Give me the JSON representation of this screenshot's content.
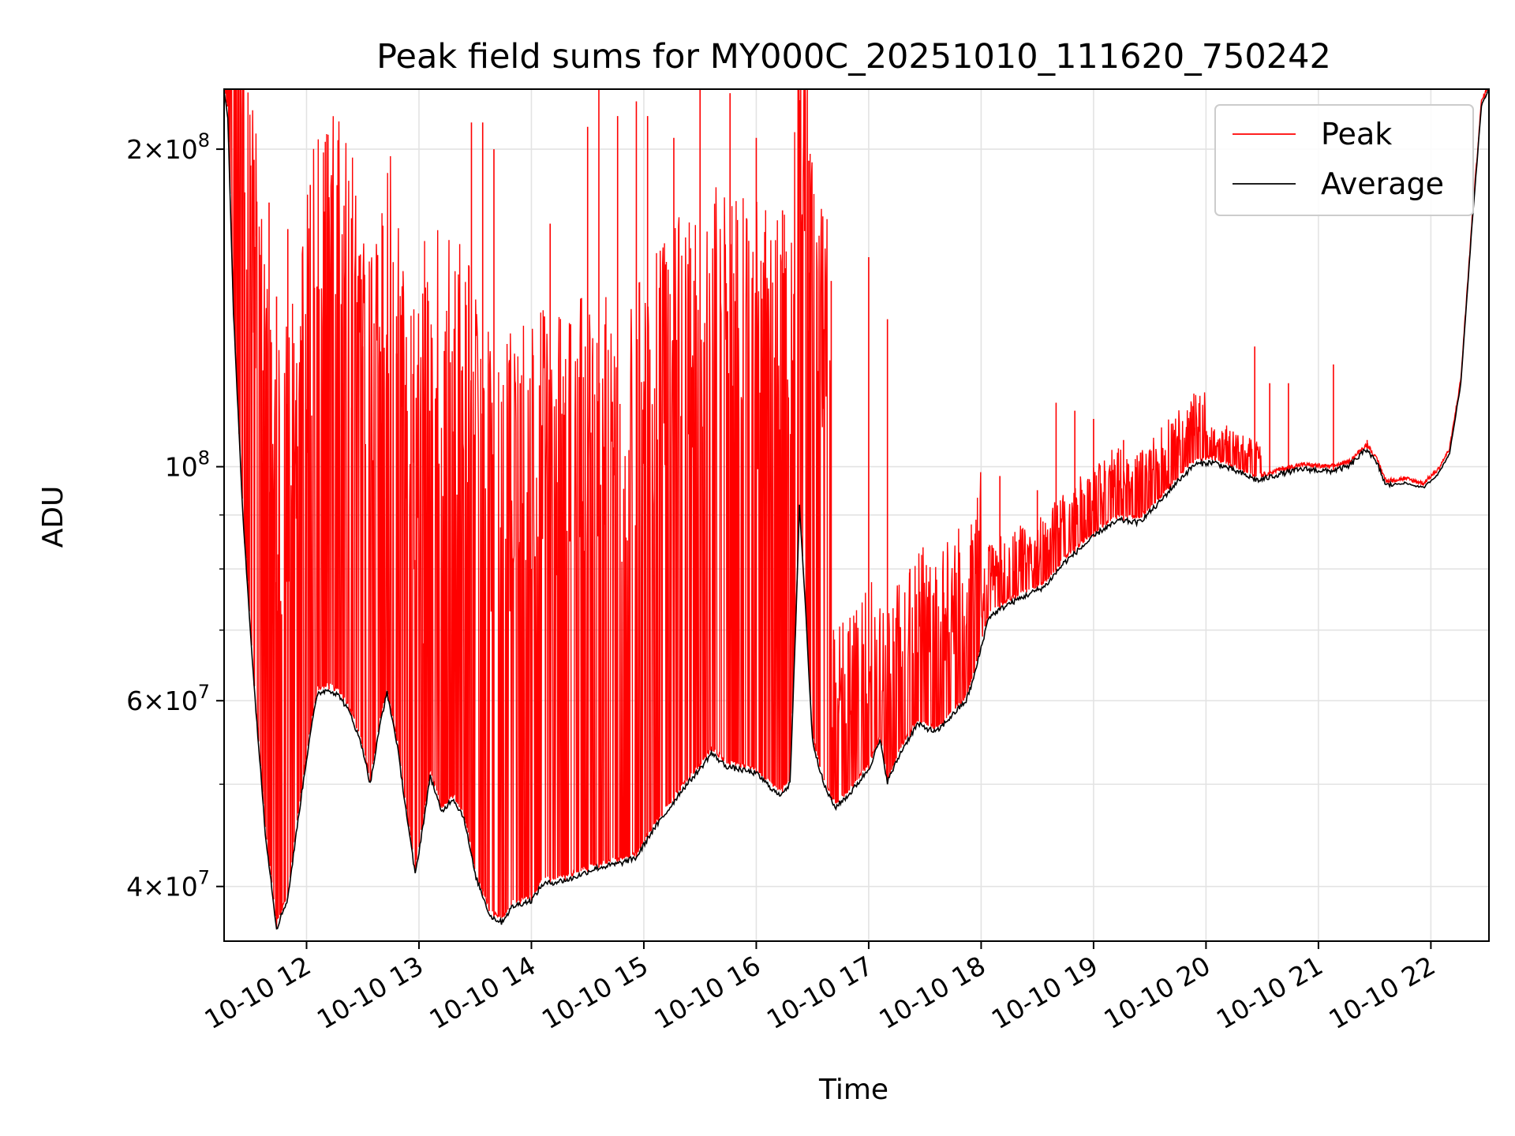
{
  "chart_data": {
    "type": "line",
    "title": "Peak field sums for MY000C_20251010_111620_750242",
    "xlabel": "Time",
    "ylabel": "ADU",
    "y_scale": "log",
    "ylim": [
      35500000,
      228000000
    ],
    "xlim": [
      "2025-10-10 11:16",
      "2025-10-10 22:31"
    ],
    "grid": true,
    "legend_position": "top-right",
    "x_ticks": [
      {
        "value": "2025-10-10 12:00",
        "label": "10-10 12"
      },
      {
        "value": "2025-10-10 13:00",
        "label": "10-10 13"
      },
      {
        "value": "2025-10-10 14:00",
        "label": "10-10 14"
      },
      {
        "value": "2025-10-10 15:00",
        "label": "10-10 15"
      },
      {
        "value": "2025-10-10 16:00",
        "label": "10-10 16"
      },
      {
        "value": "2025-10-10 17:00",
        "label": "10-10 17"
      },
      {
        "value": "2025-10-10 18:00",
        "label": "10-10 18"
      },
      {
        "value": "2025-10-10 19:00",
        "label": "10-10 19"
      },
      {
        "value": "2025-10-10 20:00",
        "label": "10-10 20"
      },
      {
        "value": "2025-10-10 21:00",
        "label": "10-10 21"
      },
      {
        "value": "2025-10-10 22:00",
        "label": "10-10 22"
      }
    ],
    "y_ticks": [
      {
        "value": 40000000,
        "base": "4",
        "exp": "7"
      },
      {
        "value": 60000000,
        "base": "6",
        "exp": "7"
      },
      {
        "value": 100000000,
        "base": "",
        "exp": "8"
      },
      {
        "value": 200000000,
        "base": "2",
        "exp": "8"
      }
    ],
    "y_minor_grid": [
      50000000,
      70000000,
      80000000,
      90000000
    ],
    "series": [
      {
        "name": "Average",
        "color": "#000000",
        "points": [
          [
            "2025-10-10 11:16",
            228000000
          ],
          [
            "2025-10-10 11:18",
            215000000
          ],
          [
            "2025-10-10 11:21",
            140000000
          ],
          [
            "2025-10-10 11:26",
            90000000
          ],
          [
            "2025-10-10 11:32",
            62000000
          ],
          [
            "2025-10-10 11:38",
            45000000
          ],
          [
            "2025-10-10 11:44",
            36500000
          ],
          [
            "2025-10-10 11:50",
            39000000
          ],
          [
            "2025-10-10 11:56",
            47000000
          ],
          [
            "2025-10-10 12:02",
            56000000
          ],
          [
            "2025-10-10 12:06",
            61000000
          ],
          [
            "2025-10-10 12:12",
            61500000
          ],
          [
            "2025-10-10 12:18",
            60500000
          ],
          [
            "2025-10-10 12:24",
            58000000
          ],
          [
            "2025-10-10 12:30",
            54000000
          ],
          [
            "2025-10-10 12:34",
            50000000
          ],
          [
            "2025-10-10 12:40",
            58000000
          ],
          [
            "2025-10-10 12:43",
            61000000
          ],
          [
            "2025-10-10 12:48",
            55000000
          ],
          [
            "2025-10-10 12:54",
            46000000
          ],
          [
            "2025-10-10 12:58",
            41000000
          ],
          [
            "2025-10-10 13:04",
            48000000
          ],
          [
            "2025-10-10 13:06",
            51000000
          ],
          [
            "2025-10-10 13:12",
            47000000
          ],
          [
            "2025-10-10 13:18",
            48500000
          ],
          [
            "2025-10-10 13:24",
            46500000
          ],
          [
            "2025-10-10 13:30",
            41000000
          ],
          [
            "2025-10-10 13:38",
            37500000
          ],
          [
            "2025-10-10 13:44",
            37000000
          ],
          [
            "2025-10-10 13:50",
            38300000
          ],
          [
            "2025-10-10 14:00",
            38800000
          ],
          [
            "2025-10-10 14:06",
            40200000
          ],
          [
            "2025-10-10 14:20",
            40600000
          ],
          [
            "2025-10-10 14:34",
            41600000
          ],
          [
            "2025-10-10 14:48",
            42100000
          ],
          [
            "2025-10-10 14:56",
            42600000
          ],
          [
            "2025-10-10 15:04",
            45000000
          ],
          [
            "2025-10-10 15:12",
            47000000
          ],
          [
            "2025-10-10 15:20",
            49300000
          ],
          [
            "2025-10-10 15:30",
            51700000
          ],
          [
            "2025-10-10 15:36",
            53500000
          ],
          [
            "2025-10-10 15:44",
            52000000
          ],
          [
            "2025-10-10 16:00",
            51200000
          ],
          [
            "2025-10-10 16:12",
            48800000
          ],
          [
            "2025-10-10 16:18",
            50000000
          ],
          [
            "2025-10-10 16:21",
            70000000
          ],
          [
            "2025-10-10 16:23",
            92000000
          ],
          [
            "2025-10-10 16:26",
            75000000
          ],
          [
            "2025-10-10 16:30",
            55000000
          ],
          [
            "2025-10-10 16:36",
            50000000
          ],
          [
            "2025-10-10 16:42",
            47500000
          ],
          [
            "2025-10-10 16:50",
            49000000
          ],
          [
            "2025-10-10 17:00",
            51700000
          ],
          [
            "2025-10-10 17:06",
            55000000
          ],
          [
            "2025-10-10 17:10",
            50300000
          ],
          [
            "2025-10-10 17:18",
            54000000
          ],
          [
            "2025-10-10 17:26",
            57000000
          ],
          [
            "2025-10-10 17:36",
            56000000
          ],
          [
            "2025-10-10 17:46",
            58500000
          ],
          [
            "2025-10-10 17:52",
            60000000
          ],
          [
            "2025-10-10 17:56",
            63000000
          ],
          [
            "2025-10-10 18:04",
            72000000
          ],
          [
            "2025-10-10 18:14",
            74000000
          ],
          [
            "2025-10-10 18:24",
            75500000
          ],
          [
            "2025-10-10 18:34",
            77000000
          ],
          [
            "2025-10-10 18:44",
            81000000
          ],
          [
            "2025-10-10 18:54",
            84000000
          ],
          [
            "2025-10-10 19:04",
            87000000
          ],
          [
            "2025-10-10 19:14",
            89000000
          ],
          [
            "2025-10-10 19:24",
            88500000
          ],
          [
            "2025-10-10 19:34",
            92000000
          ],
          [
            "2025-10-10 19:44",
            96500000
          ],
          [
            "2025-10-10 19:54",
            100500000
          ],
          [
            "2025-10-10 20:04",
            101000000
          ],
          [
            "2025-10-10 20:16",
            99000000
          ],
          [
            "2025-10-10 20:28",
            97000000
          ],
          [
            "2025-10-10 20:40",
            98500000
          ],
          [
            "2025-10-10 20:52",
            99500000
          ],
          [
            "2025-10-10 21:06",
            99000000
          ],
          [
            "2025-10-10 21:16",
            100000000
          ],
          [
            "2025-10-10 21:26",
            104000000
          ],
          [
            "2025-10-10 21:32",
            100000000
          ],
          [
            "2025-10-10 21:36",
            96000000
          ],
          [
            "2025-10-10 21:46",
            96500000
          ],
          [
            "2025-10-10 21:56",
            95500000
          ],
          [
            "2025-10-10 22:04",
            98500000
          ],
          [
            "2025-10-10 22:10",
            103000000
          ],
          [
            "2025-10-10 22:16",
            120000000
          ],
          [
            "2025-10-10 22:22",
            170000000
          ],
          [
            "2025-10-10 22:27",
            220000000
          ],
          [
            "2025-10-10 22:31",
            228000000
          ]
        ]
      },
      {
        "name": "Peak",
        "color": "#ff0000",
        "note": "Peak follows the Average envelope with frequent narrow upward spikes",
        "spikes": [
          [
            "2025-10-10 11:24",
            150000000
          ],
          [
            "2025-10-10 11:27",
            182000000
          ],
          [
            "2025-10-10 11:32",
            150000000
          ],
          [
            "2025-10-10 11:40",
            178000000
          ],
          [
            "2025-10-10 11:44",
            145000000
          ],
          [
            "2025-10-10 11:50",
            168000000
          ],
          [
            "2025-10-10 12:02",
            185000000
          ],
          [
            "2025-10-10 12:12",
            140000000
          ],
          [
            "2025-10-10 12:24",
            172000000
          ],
          [
            "2025-10-10 12:30",
            130000000
          ],
          [
            "2025-10-10 12:40",
            110000000
          ],
          [
            "2025-10-10 12:48",
            128000000
          ],
          [
            "2025-10-10 13:02",
            68000000
          ],
          [
            "2025-10-10 13:18",
            108000000
          ],
          [
            "2025-10-10 13:28",
            212000000
          ],
          [
            "2025-10-10 13:34",
            212000000
          ],
          [
            "2025-10-10 13:40",
            200000000
          ],
          [
            "2025-10-10 13:54",
            120000000
          ],
          [
            "2025-10-10 14:00",
            80000000
          ],
          [
            "2025-10-10 14:10",
            170000000
          ],
          [
            "2025-10-10 14:18",
            115000000
          ],
          [
            "2025-10-10 14:30",
            210000000
          ],
          [
            "2025-10-10 14:36",
            228000000
          ],
          [
            "2025-10-10 14:46",
            215000000
          ],
          [
            "2025-10-10 14:56",
            222000000
          ],
          [
            "2025-10-10 15:02",
            215000000
          ],
          [
            "2025-10-10 15:16",
            205000000
          ],
          [
            "2025-10-10 15:30",
            228000000
          ],
          [
            "2025-10-10 15:46",
            226000000
          ],
          [
            "2025-10-10 16:00",
            205000000
          ],
          [
            "2025-10-10 16:14",
            175000000
          ],
          [
            "2025-10-10 16:28",
            195000000
          ],
          [
            "2025-10-10 16:40",
            150000000
          ],
          [
            "2025-10-10 17:00",
            158000000
          ],
          [
            "2025-10-10 17:10",
            138000000
          ],
          [
            "2025-10-10 17:22",
            80000000
          ],
          [
            "2025-10-10 17:40",
            76000000
          ],
          [
            "2025-10-10 18:10",
            98000000
          ],
          [
            "2025-10-10 18:30",
            95000000
          ],
          [
            "2025-10-10 18:40",
            115000000
          ],
          [
            "2025-10-10 18:50",
            113000000
          ],
          [
            "2025-10-10 19:00",
            111000000
          ],
          [
            "2025-10-10 19:16",
            106000000
          ],
          [
            "2025-10-10 19:30",
            97000000
          ],
          [
            "2025-10-10 20:26",
            130000000
          ],
          [
            "2025-10-10 20:34",
            120000000
          ],
          [
            "2025-10-10 20:44",
            120000000
          ],
          [
            "2025-10-10 21:08",
            125000000
          ],
          [
            "2025-10-10 21:26",
            106000000
          ]
        ]
      }
    ],
    "legend": [
      {
        "label": "Peak",
        "color": "#ff0000"
      },
      {
        "label": "Average",
        "color": "#000000"
      }
    ]
  }
}
